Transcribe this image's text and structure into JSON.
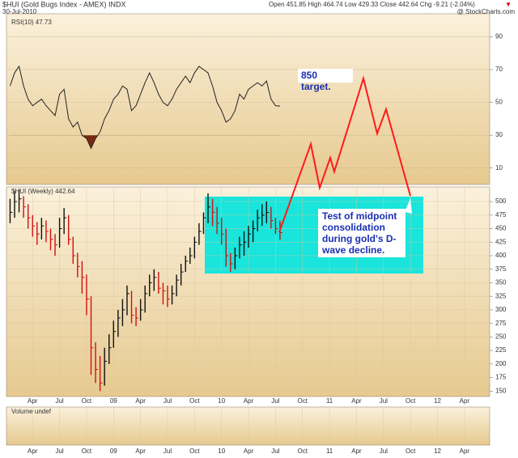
{
  "header": {
    "title": "$HUI (Gold Bugs Index - AMEX) INDX",
    "date": "30-Jul-2010",
    "quote": "Open 451.85 High 464.74 Low 429.33 Close 442.64 Chg -9.21 (-2.04%)",
    "arrow": "▼",
    "source": "@ StockCharts.com"
  },
  "annotations": {
    "target": "850 target.",
    "note": "Test of midpoint consolidation during gold's D-wave decline."
  },
  "chart_data": [
    {
      "type": "line",
      "title": "RSI(10) 47.73",
      "color": "#222222",
      "x": [
        0.5,
        1,
        1.5,
        2,
        2.5,
        3,
        3.5,
        4,
        4.5,
        5,
        5.5,
        6,
        6.5,
        7,
        7.5,
        8,
        8.5,
        9,
        9.5,
        10,
        10.5,
        11,
        11.5,
        12,
        12.5,
        13,
        13.5,
        14,
        14.5,
        15,
        15.5,
        16,
        16.5,
        17,
        17.5,
        18,
        18.5,
        19,
        19.5,
        20,
        20.5,
        21,
        21.5,
        22,
        22.5,
        23,
        23.5,
        24,
        24.5,
        25,
        25.5,
        26,
        26.5,
        27,
        27.5,
        28,
        28.5,
        29,
        29.5,
        30,
        30.5
      ],
      "values": [
        60,
        68,
        72,
        60,
        52,
        48,
        50,
        52,
        48,
        45,
        42,
        55,
        58,
        40,
        35,
        38,
        30,
        28,
        22,
        28,
        32,
        40,
        45,
        52,
        55,
        60,
        58,
        45,
        48,
        55,
        62,
        68,
        62,
        55,
        50,
        48,
        52,
        58,
        62,
        66,
        62,
        68,
        72,
        70,
        68,
        60,
        50,
        45,
        38,
        40,
        45,
        55,
        52,
        58,
        60,
        62,
        60,
        63,
        52,
        48,
        47.73
      ],
      "xlim": [
        0.1,
        53.8
      ],
      "ylim": [
        0,
        104
      ],
      "yticks": [
        10,
        30,
        50,
        70,
        90
      ]
    },
    {
      "type": "ohlc",
      "title": "$HUI (Weekly) 442.64",
      "up_color": "#111111",
      "down_color": "#d01010",
      "x": [
        0.5,
        1,
        1.5,
        2,
        2.5,
        3,
        3.5,
        4,
        4.5,
        5,
        5.5,
        6,
        6.5,
        7,
        7.5,
        8,
        8.5,
        9,
        9.5,
        10,
        10.5,
        11,
        11.5,
        12,
        12.5,
        13,
        13.5,
        14,
        14.5,
        15,
        15.5,
        16,
        16.5,
        17,
        17.5,
        18,
        18.5,
        19,
        19.5,
        20,
        20.5,
        21,
        21.5,
        22,
        22.5,
        23,
        23.5,
        24,
        24.5,
        25,
        25.5,
        26,
        26.5,
        27,
        27.5,
        28,
        28.5,
        29,
        29.5,
        30,
        30.5
      ],
      "high": [
        505,
        520,
        522,
        510,
        495,
        475,
        462,
        470,
        465,
        450,
        440,
        470,
        488,
        475,
        435,
        405,
        390,
        365,
        325,
        240,
        215,
        230,
        255,
        280,
        300,
        320,
        345,
        335,
        305,
        320,
        345,
        365,
        375,
        370,
        350,
        345,
        345,
        365,
        385,
        400,
        415,
        435,
        460,
        480,
        515,
        505,
        490,
        470,
        450,
        405,
        415,
        435,
        445,
        455,
        465,
        485,
        495,
        500,
        490,
        470,
        464.74
      ],
      "low": [
        460,
        470,
        480,
        470,
        450,
        435,
        420,
        430,
        425,
        410,
        400,
        415,
        440,
        420,
        385,
        360,
        330,
        290,
        180,
        165,
        150,
        160,
        200,
        230,
        250,
        270,
        290,
        275,
        270,
        280,
        295,
        325,
        335,
        330,
        310,
        305,
        310,
        325,
        345,
        370,
        385,
        395,
        420,
        440,
        460,
        455,
        440,
        420,
        380,
        370,
        375,
        395,
        400,
        415,
        425,
        445,
        455,
        460,
        450,
        440,
        429.33
      ],
      "close": [
        480,
        500,
        505,
        490,
        470,
        455,
        440,
        455,
        445,
        430,
        420,
        450,
        470,
        430,
        400,
        380,
        360,
        320,
        230,
        190,
        165,
        205,
        230,
        260,
        285,
        300,
        330,
        290,
        285,
        300,
        330,
        350,
        360,
        340,
        335,
        320,
        330,
        355,
        370,
        390,
        400,
        425,
        445,
        470,
        490,
        480,
        460,
        440,
        400,
        385,
        400,
        420,
        425,
        440,
        450,
        470,
        475,
        480,
        465,
        450,
        442.64
      ],
      "xlim": [
        0.1,
        53.8
      ],
      "ylim": [
        140,
        527
      ],
      "yticks": [
        150,
        175,
        200,
        225,
        250,
        275,
        300,
        325,
        350,
        375,
        400,
        425,
        450,
        475,
        500
      ],
      "xticks": [
        {
          "value": 3,
          "label": "Apr"
        },
        {
          "value": 6,
          "label": "Jul"
        },
        {
          "value": 9,
          "label": "Oct"
        },
        {
          "value": 12,
          "label": "09"
        },
        {
          "value": 15,
          "label": "Apr"
        },
        {
          "value": 18,
          "label": "Jul"
        },
        {
          "value": 21,
          "label": "Oct"
        },
        {
          "value": 24,
          "label": "10"
        },
        {
          "value": 27,
          "label": "Apr"
        },
        {
          "value": 30,
          "label": "Jul"
        },
        {
          "value": 33,
          "label": "Oct"
        },
        {
          "value": 36,
          "label": "11"
        },
        {
          "value": 39,
          "label": "Apr"
        },
        {
          "value": 42,
          "label": "Jul"
        },
        {
          "value": 45,
          "label": "Oct"
        },
        {
          "value": 48,
          "label": "12"
        },
        {
          "value": 51,
          "label": "Apr"
        }
      ]
    },
    {
      "type": "volume",
      "title": "Volume undef",
      "xlim": [
        0.1,
        53.8
      ],
      "xticks": [
        {
          "value": 3,
          "label": "Apr"
        },
        {
          "value": 6,
          "label": "Jul"
        },
        {
          "value": 9,
          "label": "Oct"
        },
        {
          "value": 12,
          "label": "09"
        },
        {
          "value": 15,
          "label": "Apr"
        },
        {
          "value": 18,
          "label": "Jul"
        },
        {
          "value": 21,
          "label": "Oct"
        },
        {
          "value": 24,
          "label": "10"
        },
        {
          "value": 27,
          "label": "Apr"
        },
        {
          "value": 30,
          "label": "Jul"
        },
        {
          "value": 33,
          "label": "Oct"
        },
        {
          "value": 36,
          "label": "11"
        },
        {
          "value": 39,
          "label": "Apr"
        },
        {
          "value": 42,
          "label": "Jul"
        },
        {
          "value": 45,
          "label": "Oct"
        },
        {
          "value": 48,
          "label": "12"
        },
        {
          "value": 51,
          "label": "Apr"
        }
      ]
    }
  ]
}
